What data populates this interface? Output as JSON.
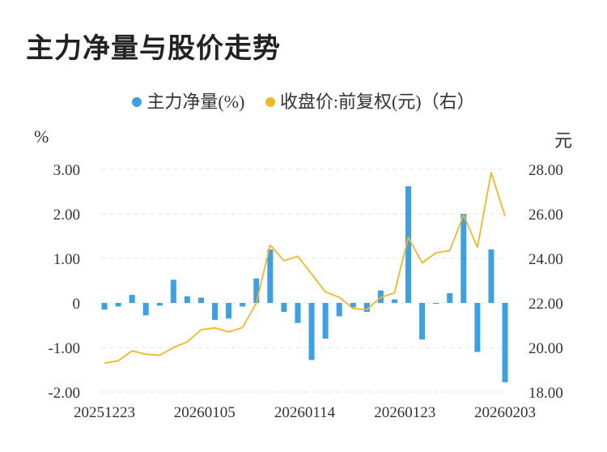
{
  "chart_data": {
    "type": "bar+line",
    "title": "主力净量与股价走势",
    "left_unit": "%",
    "right_unit": "元",
    "legend": {
      "bar_label": "主力净量(%)",
      "line_label": "收盘价:前复权(元)（右）"
    },
    "colors": {
      "bar": "#3ba0e6",
      "line": "#f2b824",
      "grid": "#e6e6e6"
    },
    "y_left": {
      "min": -2,
      "max": 3,
      "ticks": [
        "3.00",
        "2.00",
        "1.00",
        "0",
        "-1.00",
        "-2.00"
      ]
    },
    "y_right": {
      "min": 18,
      "max": 28,
      "ticks": [
        "28.00",
        "26.00",
        "24.00",
        "22.00",
        "20.00",
        "18.00"
      ]
    },
    "x_tick_labels": [
      "20251223",
      "20260105",
      "20260114",
      "20260123",
      "20260203"
    ],
    "bar_values": [
      -0.15,
      -0.08,
      0.18,
      -0.28,
      -0.06,
      0.52,
      0.15,
      0.12,
      -0.38,
      -0.35,
      -0.08,
      0.55,
      1.2,
      -0.2,
      -0.45,
      -1.28,
      -0.8,
      -0.3,
      -0.1,
      -0.2,
      0.28,
      0.08,
      2.62,
      -0.82,
      -0.02,
      0.22,
      2.0,
      -1.1,
      1.2,
      -1.78
    ],
    "line_values": [
      19.3,
      19.4,
      19.85,
      19.7,
      19.65,
      20.0,
      20.25,
      20.8,
      20.88,
      20.7,
      20.9,
      22.0,
      24.6,
      23.9,
      24.1,
      23.3,
      22.5,
      22.25,
      21.75,
      21.7,
      22.25,
      22.45,
      24.95,
      23.8,
      24.25,
      24.35,
      25.95,
      24.5,
      27.85,
      25.9
    ],
    "grid": true
  }
}
